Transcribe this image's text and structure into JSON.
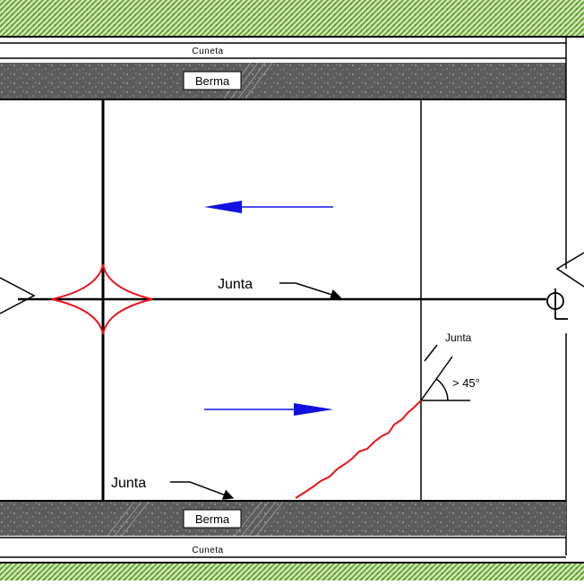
{
  "labels": {
    "cuneta_top": "Cuneta",
    "berma_top": "Berma",
    "cuneta_bottom": "Cuneta",
    "berma_bottom": "Berma",
    "junta_center": "Junta",
    "junta_right": "Junta",
    "junta_bottom": "Junta",
    "angle": "> 45°",
    "centerline": "CL"
  },
  "colors": {
    "crack": "#e8121a",
    "arrow": "#1010e0",
    "grass": "#6fae32",
    "berma": "#5c5c5c",
    "line": "#000000"
  },
  "traffic": {
    "upper_lane_direction": "left",
    "lower_lane_direction": "right"
  }
}
